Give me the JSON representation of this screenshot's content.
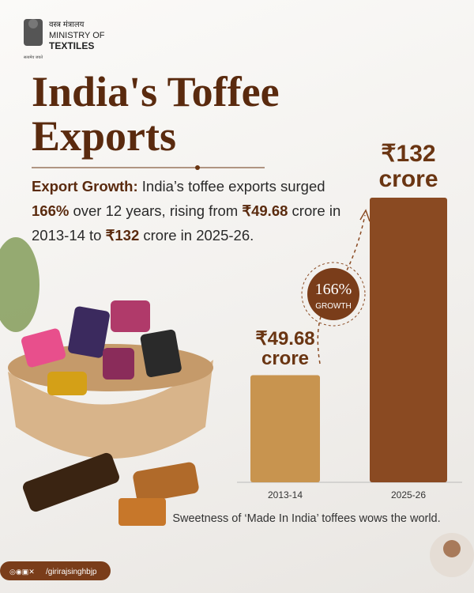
{
  "header": {
    "hindi": "वस्त्र मंत्रालय",
    "ministry": "MINISTRY OF",
    "textiles": "TEXTILES",
    "motto": "सत्यमेव जयते"
  },
  "title_lines": [
    "India's Toffee",
    "Exports"
  ],
  "description": [
    {
      "text": "Export Growth:",
      "bold": true
    },
    {
      "text": " India’s toffee exports surged ",
      "bold": false
    },
    {
      "text": "166%",
      "bold": true
    },
    {
      "text": " over 12 years, rising from ",
      "bold": false
    },
    {
      "text": "₹49.68",
      "bold": true
    },
    {
      "text": " crore in 2013-14 to ",
      "bold": false
    },
    {
      "text": "₹132",
      "bold": true
    },
    {
      "text": " crore in 2025-26.",
      "bold": false
    }
  ],
  "chart_data": {
    "type": "bar",
    "categories": [
      "2013-14",
      "2025-26"
    ],
    "values": [
      49.68,
      132
    ],
    "value_labels": [
      "₹49.68 crore",
      "₹132 crore"
    ],
    "colors": [
      "#c8944f",
      "#8a4a22"
    ],
    "annotation": {
      "value": "166%",
      "label": "GROWTH"
    }
  },
  "caption": "Sweetness of ‘Made In India’ toffees wows the world.",
  "footer": {
    "handle": "/girirajsinghbjp"
  }
}
